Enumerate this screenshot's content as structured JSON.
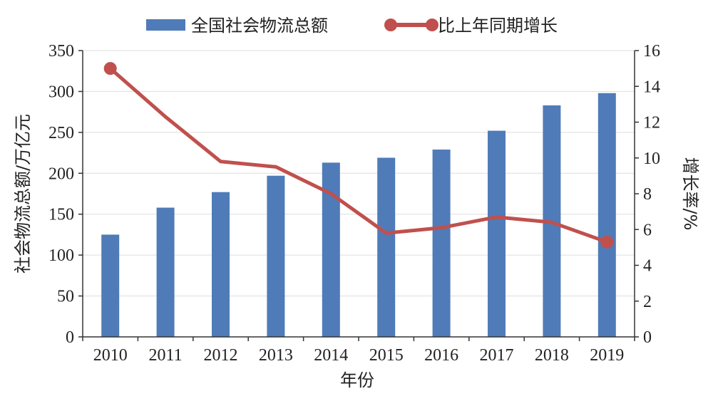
{
  "chart_data": {
    "type": "bar",
    "categories": [
      "2010",
      "2011",
      "2012",
      "2013",
      "2014",
      "2015",
      "2016",
      "2017",
      "2018",
      "2019"
    ],
    "series": [
      {
        "name": "全国社会物流总额",
        "type": "bar",
        "axis": "left",
        "color": "#4F7BB8",
        "values": [
          125,
          158,
          177,
          197,
          213,
          219,
          229,
          252,
          283,
          298
        ]
      },
      {
        "name": "比上年同期增长",
        "type": "line",
        "axis": "right",
        "color": "#C0504D",
        "values": [
          15.0,
          12.3,
          9.8,
          9.5,
          8.0,
          5.8,
          6.1,
          6.7,
          6.4,
          5.3
        ]
      }
    ],
    "xlabel": "年份",
    "ylabel": "社会物流总额/万亿元",
    "y2label": "增长率/%",
    "ylim": [
      0,
      350
    ],
    "yticks": [
      "0",
      "50",
      "100",
      "150",
      "200",
      "250",
      "300",
      "350"
    ],
    "y2lim": [
      0,
      16
    ],
    "y2ticks": [
      "0",
      "2",
      "4",
      "6",
      "8",
      "10",
      "12",
      "14",
      "16"
    ],
    "grid": true,
    "legend_position": "top"
  }
}
